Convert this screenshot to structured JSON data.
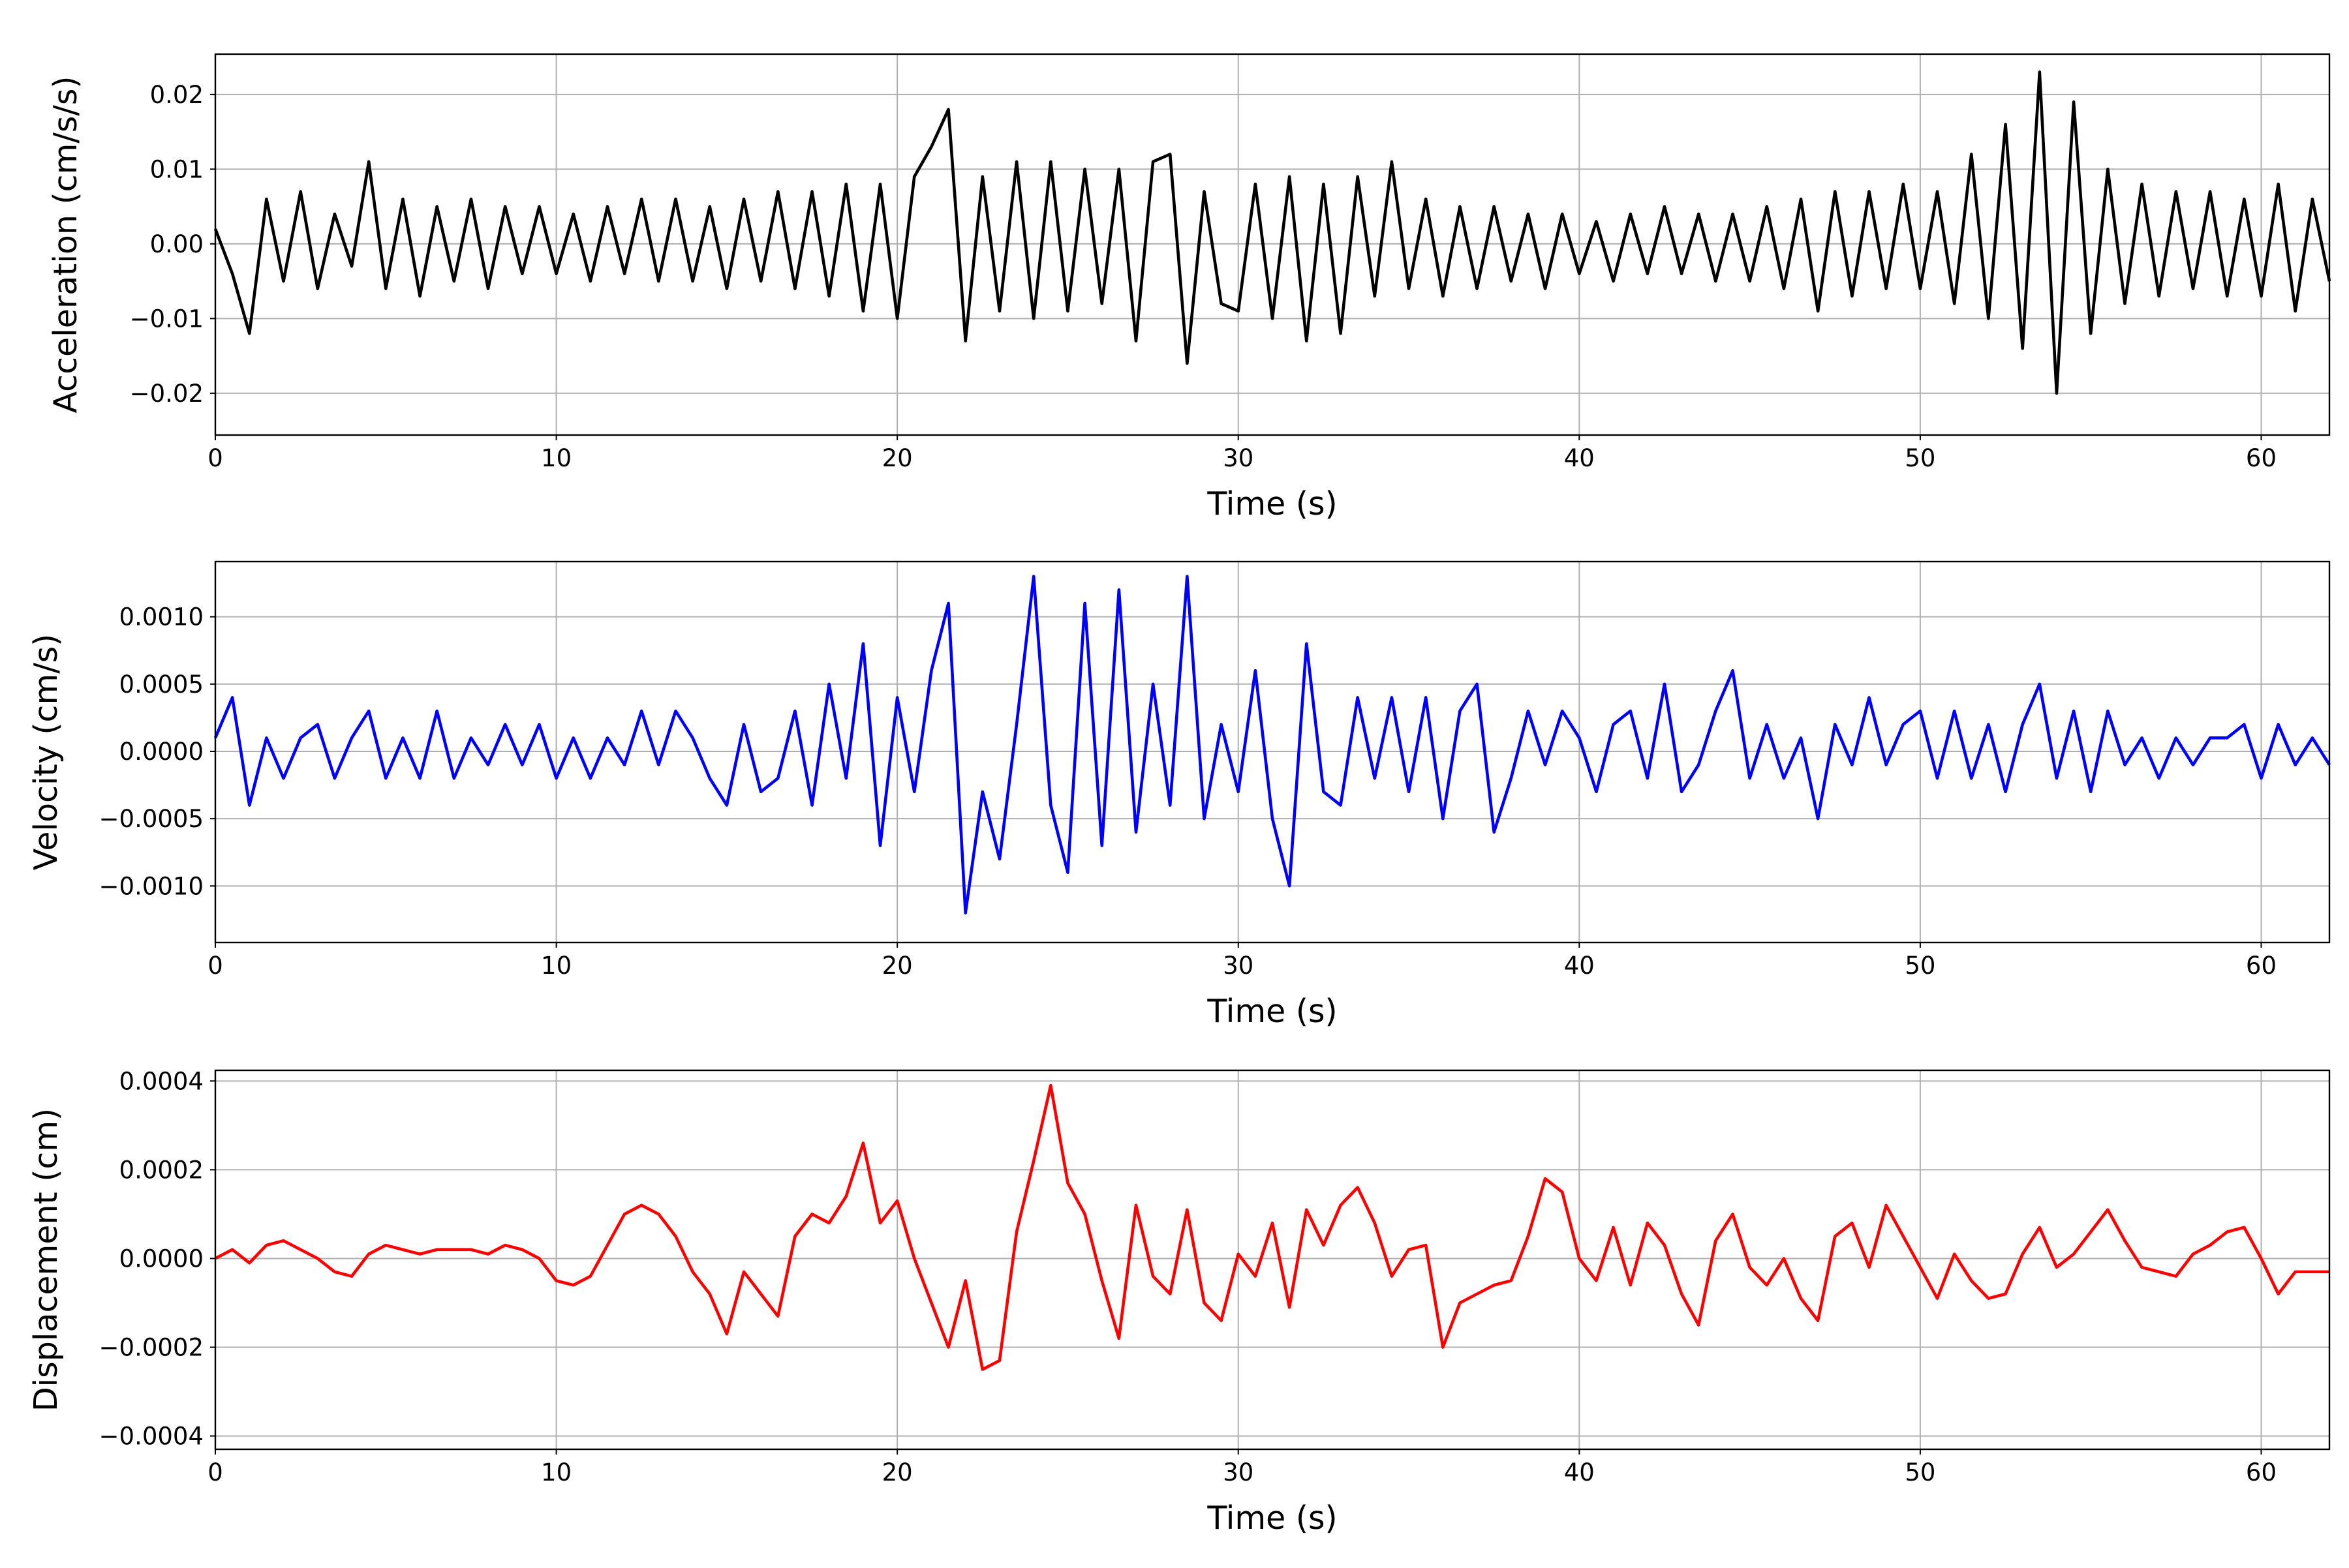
{
  "chart_data": [
    {
      "type": "line",
      "xlabel": "Time (s)",
      "ylabel": "Acceleration (cm/s/s)",
      "color": "#000000",
      "grid": true,
      "xlim": [
        0,
        62
      ],
      "ylim": [
        -0.0256,
        0.0254
      ],
      "xticks": [
        0,
        10,
        20,
        30,
        40,
        50,
        60
      ],
      "yticks": [
        {
          "value": -0.02,
          "label": "−0.02"
        },
        {
          "value": -0.01,
          "label": "−0.01"
        },
        {
          "value": 0,
          "label": "0.00"
        },
        {
          "value": 0.01,
          "label": "0.01"
        },
        {
          "value": 0.02,
          "label": "0.02"
        }
      ],
      "x": [
        0,
        0.5,
        1,
        1.5,
        2,
        2.5,
        3,
        3.5,
        4,
        4.5,
        5,
        5.5,
        6,
        6.5,
        7,
        7.5,
        8,
        8.5,
        9,
        9.5,
        10,
        10.5,
        11,
        11.5,
        12,
        12.5,
        13,
        13.5,
        14,
        14.5,
        15,
        15.5,
        16,
        16.5,
        17,
        17.5,
        18,
        18.5,
        19,
        19.5,
        20,
        20.5,
        21,
        21.5,
        22,
        22.5,
        23,
        23.5,
        24,
        24.5,
        25,
        25.5,
        26,
        26.5,
        27,
        27.5,
        28,
        28.5,
        29,
        29.5,
        30,
        30.5,
        31,
        31.5,
        32,
        32.5,
        33,
        33.5,
        34,
        34.5,
        35,
        35.5,
        36,
        36.5,
        37,
        37.5,
        38,
        38.5,
        39,
        39.5,
        40,
        40.5,
        41,
        41.5,
        42,
        42.5,
        43,
        43.5,
        44,
        44.5,
        45,
        45.5,
        46,
        46.5,
        47,
        47.5,
        48,
        48.5,
        49,
        49.5,
        50,
        50.5,
        51,
        51.5,
        52,
        52.5,
        53,
        53.5,
        54,
        54.5,
        55,
        55.5,
        56,
        56.5,
        57,
        57.5,
        58,
        58.5,
        59,
        59.5,
        60,
        60.5,
        61,
        61.5,
        62
      ],
      "values": [
        0.002,
        -0.004,
        -0.012,
        0.006,
        -0.005,
        0.007,
        -0.006,
        0.004,
        -0.003,
        0.011,
        -0.006,
        0.006,
        -0.007,
        0.005,
        -0.005,
        0.006,
        -0.006,
        0.005,
        -0.004,
        0.005,
        -0.004,
        0.004,
        -0.005,
        0.005,
        -0.004,
        0.006,
        -0.005,
        0.006,
        -0.005,
        0.005,
        -0.006,
        0.006,
        -0.005,
        0.007,
        -0.006,
        0.007,
        -0.007,
        0.008,
        -0.009,
        0.008,
        -0.01,
        0.009,
        0.013,
        0.018,
        -0.013,
        0.009,
        -0.009,
        0.011,
        -0.01,
        0.011,
        -0.009,
        0.01,
        -0.008,
        0.01,
        -0.013,
        0.011,
        0.012,
        -0.016,
        0.007,
        -0.008,
        -0.009,
        0.008,
        -0.01,
        0.009,
        -0.013,
        0.008,
        -0.012,
        0.009,
        -0.007,
        0.011,
        -0.006,
        0.006,
        -0.007,
        0.005,
        -0.006,
        0.005,
        -0.005,
        0.004,
        -0.006,
        0.004,
        -0.004,
        0.003,
        -0.005,
        0.004,
        -0.004,
        0.005,
        -0.004,
        0.004,
        -0.005,
        0.004,
        -0.005,
        0.005,
        -0.006,
        0.006,
        -0.009,
        0.007,
        -0.007,
        0.007,
        -0.006,
        0.008,
        -0.006,
        0.007,
        -0.008,
        0.012,
        -0.01,
        0.016,
        -0.014,
        0.023,
        -0.02,
        0.019,
        -0.012,
        0.01,
        -0.008,
        0.008,
        -0.007,
        0.007,
        -0.006,
        0.007,
        -0.007,
        0.006,
        -0.007,
        0.008,
        -0.009,
        0.006,
        -0.005
      ]
    },
    {
      "type": "line",
      "xlabel": "Time (s)",
      "ylabel": "Velocity (cm/s)",
      "color": "#0000ff",
      "grid": true,
      "xlim": [
        0,
        62
      ],
      "ylim": [
        -0.00142,
        0.00141
      ],
      "xticks": [
        0,
        10,
        20,
        30,
        40,
        50,
        60
      ],
      "yticks": [
        {
          "value": -0.001,
          "label": "−0.0010"
        },
        {
          "value": -0.0005,
          "label": "−0.0005"
        },
        {
          "value": 0,
          "label": "0.0000"
        },
        {
          "value": 0.0005,
          "label": "0.0005"
        },
        {
          "value": 0.001,
          "label": "0.0010"
        }
      ],
      "x": [
        0,
        0.5,
        1,
        1.5,
        2,
        2.5,
        3,
        3.5,
        4,
        4.5,
        5,
        5.5,
        6,
        6.5,
        7,
        7.5,
        8,
        8.5,
        9,
        9.5,
        10,
        10.5,
        11,
        11.5,
        12,
        12.5,
        13,
        13.5,
        14,
        14.5,
        15,
        15.5,
        16,
        16.5,
        17,
        17.5,
        18,
        18.5,
        19,
        19.5,
        20,
        20.5,
        21,
        21.5,
        22,
        22.5,
        23,
        23.5,
        24,
        24.5,
        25,
        25.5,
        26,
        26.5,
        27,
        27.5,
        28,
        28.5,
        29,
        29.5,
        30,
        30.5,
        31,
        31.5,
        32,
        32.5,
        33,
        33.5,
        34,
        34.5,
        35,
        35.5,
        36,
        36.5,
        37,
        37.5,
        38,
        38.5,
        39,
        39.5,
        40,
        40.5,
        41,
        41.5,
        42,
        42.5,
        43,
        43.5,
        44,
        44.5,
        45,
        45.5,
        46,
        46.5,
        47,
        47.5,
        48,
        48.5,
        49,
        49.5,
        50,
        50.5,
        51,
        51.5,
        52,
        52.5,
        53,
        53.5,
        54,
        54.5,
        55,
        55.5,
        56,
        56.5,
        57,
        57.5,
        58,
        58.5,
        59,
        59.5,
        60,
        60.5,
        61,
        61.5,
        62
      ],
      "values": [
        0.0001,
        0.0004,
        -0.0004,
        0.0001,
        -0.0002,
        0.0001,
        0.0002,
        -0.0002,
        0.0001,
        0.0003,
        -0.0002,
        0.0001,
        -0.0002,
        0.0003,
        -0.0002,
        0.0001,
        -0.0001,
        0.0002,
        -0.0001,
        0.0002,
        -0.0002,
        0.0001,
        -0.0002,
        0.0001,
        -0.0001,
        0.0003,
        -0.0001,
        0.0003,
        0.0001,
        -0.0002,
        -0.0004,
        0.0002,
        -0.0003,
        -0.0002,
        0.0003,
        -0.0004,
        0.0005,
        -0.0002,
        0.0008,
        -0.0007,
        0.0004,
        -0.0003,
        0.0006,
        0.0011,
        -0.0012,
        -0.0003,
        -0.0008,
        0.0002,
        0.0013,
        -0.0004,
        -0.0009,
        0.0011,
        -0.0007,
        0.0012,
        -0.0006,
        0.0005,
        -0.0004,
        0.0013,
        -0.0005,
        0.0002,
        -0.0003,
        0.0006,
        -0.0005,
        -0.001,
        0.0008,
        -0.0003,
        -0.0004,
        0.0004,
        -0.0002,
        0.0004,
        -0.0003,
        0.0004,
        -0.0005,
        0.0003,
        0.0005,
        -0.0006,
        -0.0002,
        0.0003,
        -0.0001,
        0.0003,
        0.0001,
        -0.0003,
        0.0002,
        0.0003,
        -0.0002,
        0.0005,
        -0.0003,
        -0.0001,
        0.0003,
        0.0006,
        -0.0002,
        0.0002,
        -0.0002,
        0.0001,
        -0.0005,
        0.0002,
        -0.0001,
        0.0004,
        -0.0001,
        0.0002,
        0.0003,
        -0.0002,
        0.0003,
        -0.0002,
        0.0002,
        -0.0003,
        0.0002,
        0.0005,
        -0.0002,
        0.0003,
        -0.0003,
        0.0003,
        -0.0001,
        0.0001,
        -0.0002,
        0.0001,
        -0.0001,
        0.0001,
        0.0001,
        0.0002,
        -0.0002,
        0.0002,
        -0.0001,
        0.0001,
        -0.0001
      ]
    },
    {
      "type": "line",
      "xlabel": "Time (s)",
      "ylabel": "Displacement (cm)",
      "color": "#ff0000",
      "grid": true,
      "xlim": [
        0,
        62
      ],
      "ylim": [
        -0.00043,
        0.000424
      ],
      "xticks": [
        0,
        10,
        20,
        30,
        40,
        50,
        60
      ],
      "yticks": [
        {
          "value": -0.0004,
          "label": "−0.0004"
        },
        {
          "value": -0.0002,
          "label": "−0.0002"
        },
        {
          "value": 0,
          "label": "0.0000"
        },
        {
          "value": 0.0002,
          "label": "0.0002"
        },
        {
          "value": 0.0004,
          "label": "0.0004"
        }
      ],
      "x": [
        0,
        0.5,
        1,
        1.5,
        2,
        2.5,
        3,
        3.5,
        4,
        4.5,
        5,
        5.5,
        6,
        6.5,
        7,
        7.5,
        8,
        8.5,
        9,
        9.5,
        10,
        10.5,
        11,
        11.5,
        12,
        12.5,
        13,
        13.5,
        14,
        14.5,
        15,
        15.5,
        16,
        16.5,
        17,
        17.5,
        18,
        18.5,
        19,
        19.5,
        20,
        20.5,
        21,
        21.5,
        22,
        22.5,
        23,
        23.5,
        24,
        24.5,
        25,
        25.5,
        26,
        26.5,
        27,
        27.5,
        28,
        28.5,
        29,
        29.5,
        30,
        30.5,
        31,
        31.5,
        32,
        32.5,
        33,
        33.5,
        34,
        34.5,
        35,
        35.5,
        36,
        36.5,
        37,
        37.5,
        38,
        38.5,
        39,
        39.5,
        40,
        40.5,
        41,
        41.5,
        42,
        42.5,
        43,
        43.5,
        44,
        44.5,
        45,
        45.5,
        46,
        46.5,
        47,
        47.5,
        48,
        48.5,
        49,
        49.5,
        50,
        50.5,
        51,
        51.5,
        52,
        52.5,
        53,
        53.5,
        54,
        54.5,
        55,
        55.5,
        56,
        56.5,
        57,
        57.5,
        58,
        58.5,
        59,
        59.5,
        60,
        60.5,
        61,
        61.5,
        62
      ],
      "values": [
        0,
        2e-05,
        -1e-05,
        3e-05,
        4e-05,
        2e-05,
        0,
        -3e-05,
        -4e-05,
        1e-05,
        3e-05,
        2e-05,
        1e-05,
        2e-05,
        2e-05,
        2e-05,
        1e-05,
        3e-05,
        2e-05,
        0,
        -5e-05,
        -6e-05,
        -4e-05,
        3e-05,
        0.0001,
        0.00012,
        0.0001,
        5e-05,
        -3e-05,
        -8e-05,
        -0.00017,
        -3e-05,
        -8e-05,
        -0.00013,
        5e-05,
        0.0001,
        8e-05,
        0.00014,
        0.00026,
        8e-05,
        0.00013,
        0,
        -0.0001,
        -0.0002,
        -5e-05,
        -0.00025,
        -0.00023,
        6e-05,
        0.00022,
        0.00039,
        0.00017,
        0.0001,
        -5e-05,
        -0.00018,
        0.00012,
        -4e-05,
        -8e-05,
        0.00011,
        -0.0001,
        -0.00014,
        1e-05,
        -4e-05,
        8e-05,
        -0.00011,
        0.00011,
        3e-05,
        0.00012,
        0.00016,
        8e-05,
        -4e-05,
        2e-05,
        3e-05,
        -0.0002,
        -0.0001,
        -8e-05,
        -6e-05,
        -5e-05,
        5e-05,
        0.00018,
        0.00015,
        0,
        -5e-05,
        7e-05,
        -6e-05,
        8e-05,
        3e-05,
        -8e-05,
        -0.00015,
        4e-05,
        0.0001,
        -2e-05,
        -6e-05,
        0,
        -9e-05,
        -0.00014,
        5e-05,
        8e-05,
        -2e-05,
        0.00012,
        5e-05,
        -2e-05,
        -9e-05,
        1e-05,
        -5e-05,
        -9e-05,
        -8e-05,
        1e-05,
        7e-05,
        -2e-05,
        1e-05,
        6e-05,
        0.00011,
        4e-05,
        -2e-05,
        -3e-05,
        -4e-05,
        1e-05,
        3e-05,
        6e-05,
        7e-05,
        0,
        -8e-05,
        -3e-05,
        -3e-05,
        -3e-05
      ]
    }
  ]
}
